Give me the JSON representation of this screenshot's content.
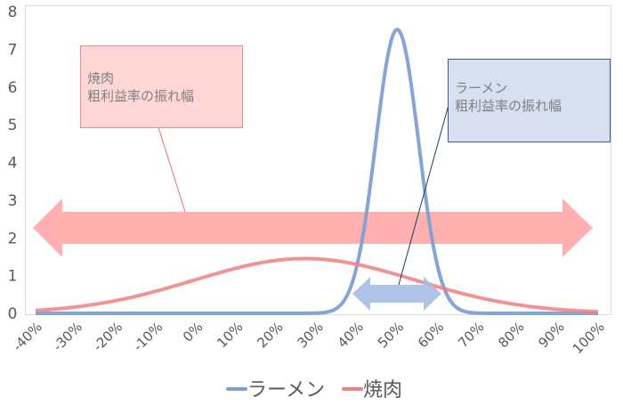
{
  "chart_data": {
    "type": "line",
    "title": "",
    "xlabel": "",
    "ylabel": "",
    "x": [
      "-40%",
      "-30%",
      "-20%",
      "-10%",
      "0%",
      "10%",
      "20%",
      "30%",
      "40%",
      "50%",
      "60%",
      "70%",
      "80%",
      "90%",
      "100%"
    ],
    "ylim": [
      0,
      8
    ],
    "yticks": [
      "0",
      "1",
      "2",
      "3",
      "4",
      "5",
      "6",
      "7",
      "8"
    ],
    "grid": false,
    "legend_position": "bottom",
    "series": [
      {
        "name": "ラーメン",
        "color": "#7f9fd4",
        "distribution": "normal",
        "mean": 0.5,
        "std": 0.053,
        "values": [
          0,
          0,
          0,
          0,
          0,
          0,
          0,
          0,
          0.15,
          7.5,
          0.15,
          0,
          0,
          0,
          0
        ]
      },
      {
        "name": "焼肉",
        "color": "#f08080",
        "distribution": "normal",
        "mean": 0.27,
        "std": 0.275,
        "values": [
          0.05,
          0.12,
          0.26,
          0.49,
          0.8,
          1.13,
          1.38,
          1.45,
          1.31,
          1.02,
          0.69,
          0.41,
          0.21,
          0.09,
          0.03
        ]
      }
    ],
    "annotations": [
      {
        "type": "callout",
        "lines": [
          "焼肉",
          "粗利益率の振れ幅"
        ],
        "fill": "#ffd7d7",
        "border": "#e88c8c"
      },
      {
        "type": "callout",
        "lines": [
          "ラーメン",
          "粗利益率の振れ幅"
        ],
        "fill": "#d7e0f0",
        "border": "#3e5a86"
      },
      {
        "type": "double-arrow",
        "from": "-40%",
        "to": "100%",
        "y": 2.3,
        "color": "#ffaaaa",
        "meaning": "焼肉 range"
      },
      {
        "type": "double-arrow",
        "from": "39%",
        "to": "61%",
        "y": 0.55,
        "color": "#a6bce3",
        "meaning": "ラーメン range"
      }
    ]
  },
  "callouts": {
    "yakiniku": {
      "line1": "焼肉",
      "line2": "粗利益率の振れ幅"
    },
    "ramen": {
      "line1": "ラーメン",
      "line2": "粗利益率の振れ幅"
    }
  },
  "legend": {
    "items": [
      {
        "label": "ラーメン",
        "color": "#7f9fd4"
      },
      {
        "label": "焼肉",
        "color": "#f08080"
      }
    ]
  }
}
